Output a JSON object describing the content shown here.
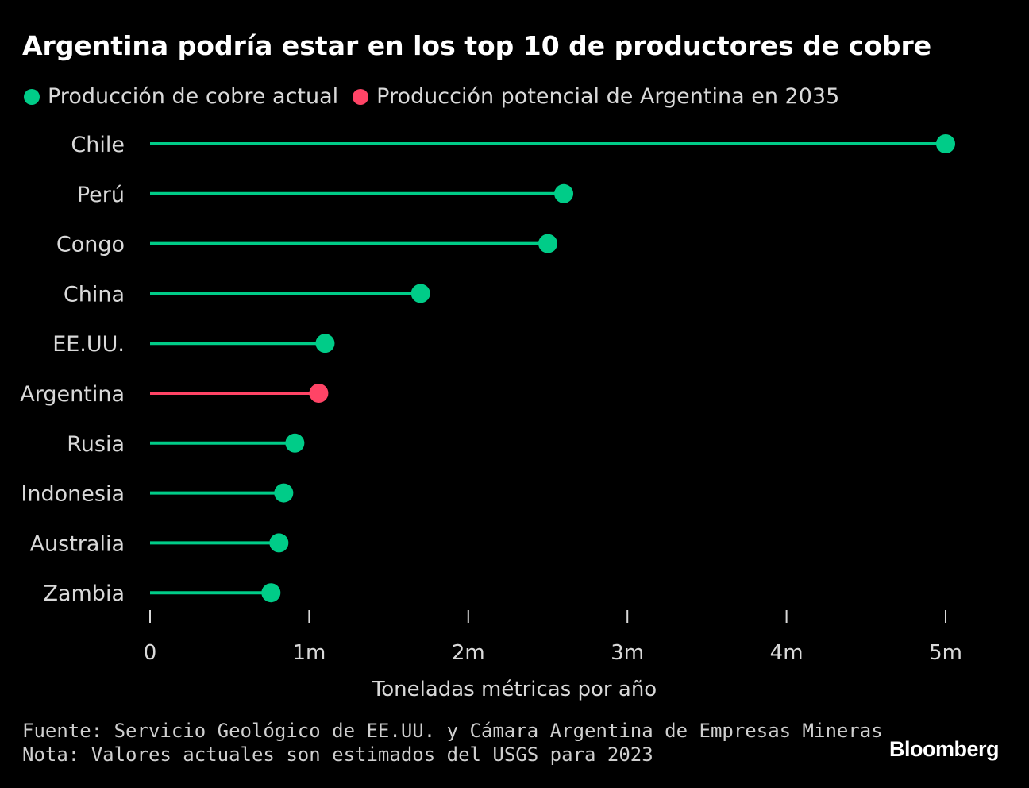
{
  "title": "Argentina podría estar en los top 10 de productores de cobre",
  "legend": [
    {
      "label": "Producción de cobre actual",
      "color": "#00cc88"
    },
    {
      "label": "Producción potencial de Argentina en 2035",
      "color": "#ff4466"
    }
  ],
  "chart_data": {
    "type": "lollipop",
    "title": "Argentina podría estar en los top 10 de productores de cobre",
    "xlabel": "Toneladas métricas por año",
    "ylabel": "",
    "xlim": [
      0,
      5000000
    ],
    "ticks": [
      {
        "value": 0,
        "label": "0"
      },
      {
        "value": 1000000,
        "label": "1m"
      },
      {
        "value": 2000000,
        "label": "2m"
      },
      {
        "value": 3000000,
        "label": "3m"
      },
      {
        "value": 4000000,
        "label": "4m"
      },
      {
        "value": 5000000,
        "label": "5m"
      }
    ],
    "categories": [
      "Chile",
      "Perú",
      "Congo",
      "China",
      "EE.UU.",
      "Argentina",
      "Rusia",
      "Indonesia",
      "Australia",
      "Zambia"
    ],
    "values": [
      5000000,
      2600000,
      2500000,
      1700000,
      1100000,
      1060000,
      910000,
      840000,
      810000,
      760000
    ],
    "series_kind": [
      "actual",
      "actual",
      "actual",
      "actual",
      "actual",
      "potencial",
      "actual",
      "actual",
      "actual",
      "actual"
    ],
    "colors": {
      "actual": "#00cc88",
      "potencial": "#ff4466"
    }
  },
  "footer": {
    "source": "Fuente: Servicio Geológico de EE.UU. y Cámara Argentina de Empresas Mineras",
    "note": "Nota: Valores actuales son estimados del USGS para 2023"
  },
  "brand": "Bloomberg"
}
